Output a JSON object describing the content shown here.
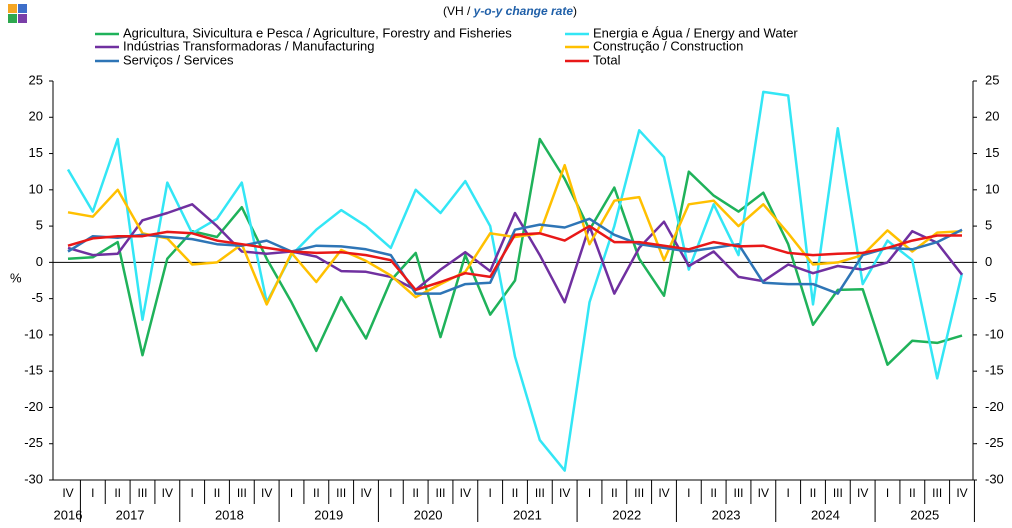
{
  "chart_data": {
    "type": "line",
    "title": {
      "prefix": "(VH / ",
      "emphasis": "y-o-y change rate",
      "suffix": ")"
    },
    "ylabel": "%",
    "categories": [
      "IV",
      "I",
      "II",
      "III",
      "IV",
      "I",
      "II",
      "III",
      "IV",
      "I",
      "II",
      "III",
      "IV",
      "I",
      "II",
      "III",
      "IV",
      "I",
      "II",
      "III",
      "IV",
      "I",
      "II",
      "III",
      "IV",
      "I",
      "II",
      "III",
      "IV",
      "I",
      "II",
      "III",
      "IV",
      "I",
      "II",
      "III",
      "IV"
    ],
    "year_labels": [
      "2016",
      "2017",
      "2018",
      "2019",
      "2020",
      "2021",
      "2022",
      "2023",
      "2024",
      "2025"
    ],
    "ylim": [
      -30,
      25
    ],
    "yticks": [
      -30,
      -25,
      -20,
      -15,
      -10,
      -5,
      0,
      5,
      10,
      15,
      20,
      25
    ],
    "series": [
      {
        "name": "Agricultura, Sivicultura e Pesca / Agriculture, Forestry and Fisheries",
        "color": "#1fb25a",
        "values": [
          0.5,
          0.7,
          2.8,
          -12.8,
          0.5,
          4.3,
          3.5,
          7.6,
          0.5,
          -5.5,
          -12.2,
          -4.8,
          -10.5,
          -2.5,
          1.3,
          -10.3,
          1.0,
          -7.2,
          -2.5,
          17.0,
          11.5,
          4.5,
          10.3,
          0.5,
          -4.6,
          12.5,
          9.2,
          7.0,
          9.6,
          2.5,
          -8.6,
          -3.8,
          -3.7,
          -14.1,
          -10.8,
          -11.1,
          -10.1
        ]
      },
      {
        "name": "Energia e Água / Energy and Water",
        "color": "#33e6f5",
        "values": [
          12.8,
          7.0,
          17.0,
          -7.9,
          11.0,
          4.0,
          6.0,
          11.0,
          -5.5,
          1.0,
          4.5,
          7.2,
          5.0,
          2.0,
          10.0,
          6.8,
          11.2,
          5.0,
          -13.0,
          -24.5,
          -28.7,
          -5.5,
          5.0,
          18.2,
          14.5,
          -1.0,
          8.0,
          1.0,
          23.5,
          23.0,
          -5.8,
          18.5,
          -3.0,
          3.0,
          0.3,
          -16.0,
          -1.5
        ]
      },
      {
        "name": "Indústrias Transformadoras / Manufacturing",
        "color": "#7030a0",
        "values": [
          2.0,
          1.0,
          1.2,
          5.8,
          6.8,
          8.0,
          5.0,
          1.5,
          1.2,
          1.5,
          0.8,
          -1.2,
          -1.3,
          -2.0,
          -3.8,
          -1.0,
          1.4,
          -1.2,
          6.8,
          1.0,
          -5.5,
          5.0,
          -4.3,
          2.0,
          5.6,
          -0.5,
          1.5,
          -2.0,
          -2.6,
          -0.3,
          -1.5,
          -0.5,
          -1.0,
          0.0,
          4.3,
          2.7,
          -1.7
        ]
      },
      {
        "name": "Construção / Construction",
        "color": "#ffc000",
        "values": [
          6.9,
          6.3,
          10.0,
          4.0,
          3.3,
          -0.3,
          0.0,
          2.5,
          -5.8,
          1.3,
          -2.7,
          1.7,
          0.2,
          -1.8,
          -4.8,
          -3.0,
          -1.3,
          4.0,
          3.5,
          4.0,
          13.4,
          2.5,
          8.5,
          9.0,
          0.3,
          8.0,
          8.5,
          5.0,
          8.0,
          4.0,
          -0.3,
          0.0,
          1.0,
          4.4,
          1.5,
          4.1,
          4.3
        ]
      },
      {
        "name": "Serviços / Services",
        "color": "#2e75b6",
        "values": [
          1.5,
          3.6,
          3.4,
          3.8,
          3.5,
          3.2,
          2.5,
          2.3,
          3.0,
          1.5,
          2.3,
          2.2,
          1.8,
          1.0,
          -4.3,
          -4.3,
          -3.0,
          -2.8,
          4.5,
          5.2,
          4.8,
          6.0,
          3.8,
          2.5,
          2.0,
          1.5,
          2.0,
          2.5,
          -2.8,
          -3.0,
          -3.0,
          -4.3,
          1.0,
          2.0,
          1.8,
          2.8,
          4.5
        ]
      },
      {
        "name": "Total",
        "color": "#e81818",
        "values": [
          2.3,
          3.3,
          3.6,
          3.6,
          4.2,
          4.0,
          3.0,
          2.5,
          2.0,
          1.5,
          1.3,
          1.4,
          1.0,
          0.3,
          -3.8,
          -2.7,
          -1.5,
          -2.0,
          3.8,
          4.0,
          3.0,
          5.0,
          2.8,
          2.8,
          2.3,
          1.8,
          2.8,
          2.2,
          2.3,
          1.3,
          1.0,
          1.2,
          1.3,
          2.0,
          3.0,
          3.7,
          3.7
        ]
      }
    ]
  }
}
